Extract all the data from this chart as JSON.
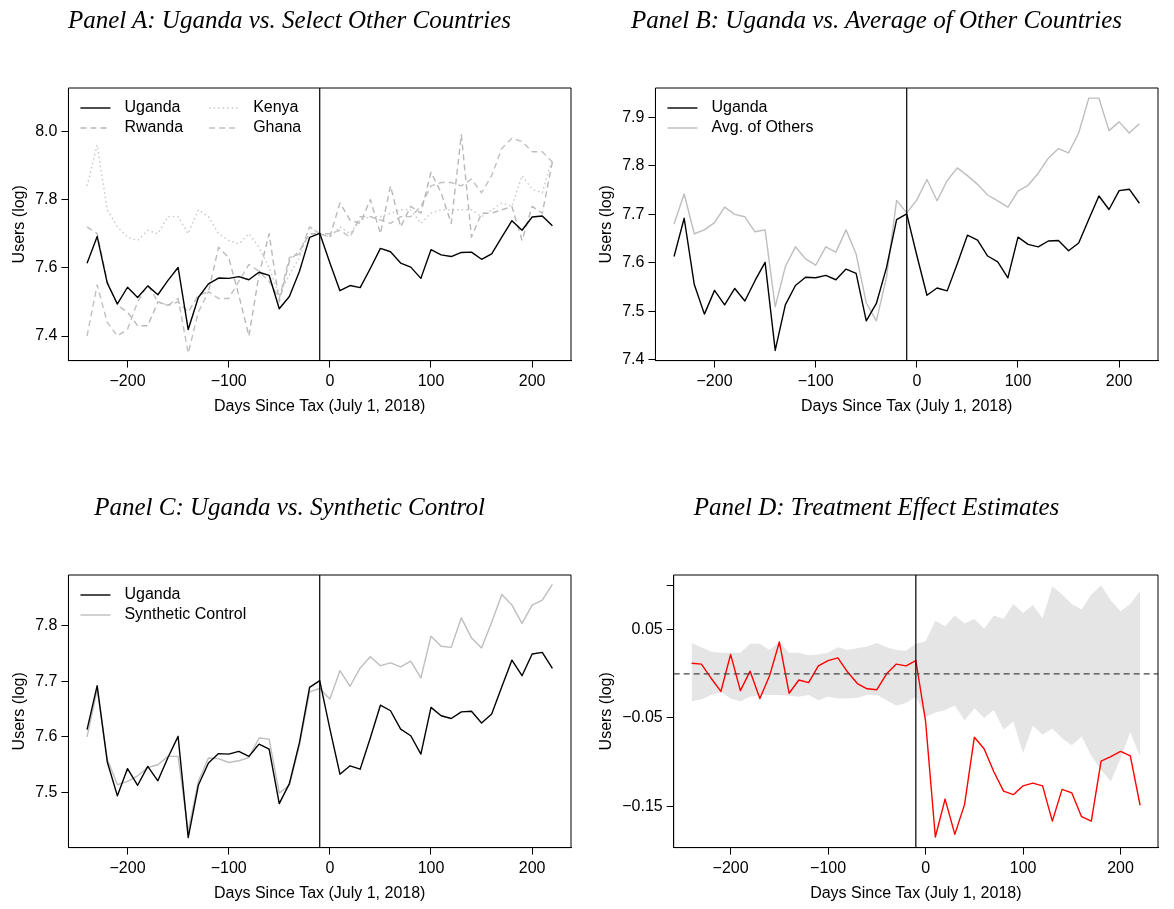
{
  "chart_data": [
    {
      "type": "line",
      "title": "Panel A: Uganda vs. Select Other Countries",
      "xlabel": "Days Since Tax (July 1, 2018)",
      "ylabel": "Users (log)",
      "legend": "top left",
      "x": [
        -240,
        -230,
        -220,
        -210,
        -200,
        -190,
        -180,
        -170,
        -160,
        -150,
        -140,
        -130,
        -120,
        -110,
        -100,
        -90,
        -80,
        -70,
        -60,
        -50,
        -40,
        -30,
        -20,
        -10,
        0,
        10,
        20,
        30,
        40,
        50,
        60,
        70,
        80,
        90,
        100,
        110,
        120,
        130,
        140,
        150,
        160,
        170,
        180,
        190,
        200,
        210,
        220
      ],
      "xlim": [
        -258.4,
        238.4
      ],
      "ylim": [
        7.328,
        8.127
      ],
      "yticks": [
        {
          "value": 7.4,
          "label": "7.4"
        },
        {
          "value": 7.6,
          "label": "7.6"
        },
        {
          "value": 7.8,
          "label": "7.8"
        },
        {
          "value": 8,
          "label": "8.0"
        }
      ],
      "ref_lines": [
        {
          "axis": "x",
          "value": -10,
          "color": "#000000"
        }
      ],
      "xticks": [
        -200,
        -100,
        0,
        100,
        200
      ],
      "series": [
        {
          "name": "Uganda",
          "color": "#000000",
          "line_style": "solid",
          "values": [
            7.613,
            7.692,
            7.555,
            7.494,
            7.543,
            7.513,
            7.547,
            7.521,
            7.563,
            7.601,
            7.419,
            7.513,
            7.553,
            7.57,
            7.569,
            7.574,
            7.565,
            7.587,
            7.578,
            7.48,
            7.516,
            7.59,
            7.689,
            7.701,
            7.615,
            7.533,
            7.548,
            7.542,
            7.598,
            7.657,
            7.647,
            7.614,
            7.602,
            7.569,
            7.653,
            7.638,
            7.633,
            7.645,
            7.646,
            7.625,
            7.641,
            7.69,
            7.738,
            7.71,
            7.749,
            7.752,
            7.723
          ]
        },
        {
          "name": "Rwanda",
          "color": "#b8b8b8",
          "line_style": "dashed",
          "values": [
            7.72,
            7.7,
            7.56,
            7.49,
            7.47,
            7.43,
            7.43,
            7.5,
            7.49,
            7.5,
            7.47,
            7.52,
            7.53,
            7.66,
            7.63,
            7.52,
            7.4,
            7.58,
            7.7,
            7.5,
            7.62,
            7.65,
            7.7,
            7.7,
            7.69,
            7.79,
            7.74,
            7.73,
            7.8,
            7.7,
            7.84,
            7.72,
            7.78,
            7.76,
            7.88,
            7.82,
            7.73,
            7.99,
            7.69,
            7.76,
            7.76,
            7.77,
            7.78,
            7.68,
            7.78,
            7.76,
            7.91
          ]
        },
        {
          "name": "Kenya",
          "color": "#c8c8c8",
          "line_style": "dotted",
          "values": [
            7.84,
            7.96,
            7.77,
            7.72,
            7.69,
            7.68,
            7.71,
            7.7,
            7.75,
            7.75,
            7.7,
            7.77,
            7.75,
            7.7,
            7.68,
            7.67,
            7.7,
            7.66,
            7.6,
            7.52,
            7.58,
            7.63,
            7.72,
            7.7,
            7.69,
            7.72,
            7.7,
            7.74,
            7.75,
            7.75,
            7.76,
            7.77,
            7.77,
            7.73,
            7.76,
            7.77,
            7.77,
            7.77,
            7.77,
            7.75,
            7.77,
            7.79,
            7.78,
            7.87,
            7.83,
            7.82,
            7.92
          ]
        },
        {
          "name": "Ghana",
          "color": "#c0c0c0",
          "line_style": "dashed",
          "values": [
            7.4,
            7.55,
            7.44,
            7.4,
            7.42,
            7.5,
            7.55,
            7.5,
            7.49,
            7.51,
            7.35,
            7.47,
            7.53,
            7.51,
            7.51,
            7.56,
            7.61,
            7.59,
            7.56,
            7.51,
            7.63,
            7.64,
            7.72,
            7.7,
            7.7,
            7.71,
            7.69,
            7.75,
            7.75,
            7.74,
            7.73,
            7.75,
            7.75,
            7.78,
            7.84,
            7.85,
            7.85,
            7.84,
            7.86,
            7.82,
            7.87,
            7.95,
            7.98,
            7.97,
            7.94,
            7.94,
            7.91
          ]
        }
      ]
    },
    {
      "type": "line",
      "title": "Panel B: Uganda vs. Average of Other Countries",
      "xlabel": "Days Since Tax (July 1, 2018)",
      "ylabel": "Users (log)",
      "legend": "top left",
      "x": [
        -240,
        -230,
        -220,
        -210,
        -200,
        -190,
        -180,
        -170,
        -160,
        -150,
        -140,
        -130,
        -120,
        -110,
        -100,
        -90,
        -80,
        -70,
        -60,
        -50,
        -40,
        -30,
        -20,
        -10,
        0,
        10,
        20,
        30,
        40,
        50,
        60,
        70,
        80,
        90,
        100,
        110,
        120,
        130,
        140,
        150,
        160,
        170,
        180,
        190,
        200,
        210,
        220
      ],
      "xlim": [
        -258.4,
        238.4
      ],
      "xticks": [
        -200,
        -100,
        0,
        100,
        200
      ],
      "ylim": [
        7.398,
        7.961
      ],
      "yticks": [
        7.4,
        7.5,
        7.6,
        7.7,
        7.8,
        7.9
      ],
      "ref_lines": [
        {
          "axis": "x",
          "value": -10,
          "color": "#000000"
        }
      ],
      "series": [
        {
          "name": "Uganda",
          "color": "#000000",
          "values": [
            7.613,
            7.692,
            7.555,
            7.494,
            7.543,
            7.513,
            7.547,
            7.521,
            7.563,
            7.601,
            7.419,
            7.513,
            7.553,
            7.57,
            7.569,
            7.574,
            7.565,
            7.587,
            7.578,
            7.48,
            7.516,
            7.59,
            7.689,
            7.701,
            7.615,
            7.533,
            7.548,
            7.542,
            7.598,
            7.657,
            7.647,
            7.614,
            7.602,
            7.569,
            7.653,
            7.638,
            7.633,
            7.645,
            7.646,
            7.625,
            7.641,
            7.69,
            7.738,
            7.71,
            7.749,
            7.752,
            7.723
          ]
        },
        {
          "name": "Avg. of Others",
          "color": "#bebebe",
          "values": [
            7.68,
            7.742,
            7.66,
            7.668,
            7.683,
            7.715,
            7.7,
            7.695,
            7.664,
            7.668,
            7.509,
            7.592,
            7.633,
            7.608,
            7.595,
            7.633,
            7.622,
            7.668,
            7.618,
            7.517,
            7.48,
            7.57,
            7.729,
            7.703,
            7.73,
            7.772,
            7.728,
            7.77,
            7.796,
            7.78,
            7.762,
            7.74,
            7.728,
            7.715,
            7.748,
            7.76,
            7.785,
            7.816,
            7.836,
            7.827,
            7.868,
            7.94,
            7.94,
            7.873,
            7.891,
            7.868,
            7.887
          ]
        }
      ]
    },
    {
      "type": "line",
      "title": "Panel C: Uganda vs. Synthetic Control",
      "xlabel": "Days Since Tax (July 1, 2018)",
      "ylabel": "Users (log)",
      "legend": "top left",
      "x": [
        -240,
        -230,
        -220,
        -210,
        -200,
        -190,
        -180,
        -170,
        -160,
        -150,
        -140,
        -130,
        -120,
        -110,
        -100,
        -90,
        -80,
        -70,
        -60,
        -50,
        -40,
        -30,
        -20,
        -10,
        0,
        10,
        20,
        30,
        40,
        50,
        60,
        70,
        80,
        90,
        100,
        110,
        120,
        130,
        140,
        150,
        160,
        170,
        180,
        190,
        200,
        210,
        220
      ],
      "xlim": [
        -258.4,
        238.4
      ],
      "xticks": [
        -200,
        -100,
        0,
        100,
        200
      ],
      "ylim": [
        7.401,
        7.891
      ],
      "yticks": [
        7.5,
        7.6,
        7.7,
        7.8
      ],
      "ref_lines": [
        {
          "axis": "x",
          "value": -10,
          "color": "#000000"
        }
      ],
      "series": [
        {
          "name": "Uganda",
          "color": "#000000",
          "values": [
            7.613,
            7.692,
            7.555,
            7.494,
            7.543,
            7.513,
            7.547,
            7.521,
            7.563,
            7.601,
            7.419,
            7.513,
            7.553,
            7.57,
            7.569,
            7.574,
            7.565,
            7.587,
            7.578,
            7.48,
            7.516,
            7.59,
            7.689,
            7.701,
            7.615,
            7.533,
            7.548,
            7.542,
            7.598,
            7.657,
            7.647,
            7.614,
            7.602,
            7.569,
            7.653,
            7.638,
            7.633,
            7.645,
            7.646,
            7.625,
            7.641,
            7.69,
            7.738,
            7.71,
            7.749,
            7.752,
            7.723
          ]
        },
        {
          "name": "Synthetic Control",
          "color": "#bebebe",
          "values": [
            7.6,
            7.685,
            7.56,
            7.514,
            7.52,
            7.53,
            7.545,
            7.55,
            7.565,
            7.565,
            7.43,
            7.52,
            7.562,
            7.561,
            7.554,
            7.557,
            7.563,
            7.598,
            7.596,
            7.499,
            7.513,
            7.585,
            7.681,
            7.687,
            7.668,
            7.719,
            7.691,
            7.724,
            7.744,
            7.728,
            7.733,
            7.726,
            7.736,
            7.706,
            7.781,
            7.763,
            7.761,
            7.814,
            7.778,
            7.76,
            7.806,
            7.856,
            7.837,
            7.804,
            7.837,
            7.846,
            7.874
          ]
        }
      ]
    },
    {
      "type": "line",
      "title": "Panel D: Treatment Effect Estimates",
      "xlabel": "Days Since Tax (July 1, 2018)",
      "ylabel": "Users (log)",
      "x": [
        -240,
        -230,
        -220,
        -210,
        -200,
        -190,
        -180,
        -170,
        -160,
        -150,
        -140,
        -130,
        -120,
        -110,
        -100,
        -90,
        -80,
        -70,
        -60,
        -50,
        -40,
        -30,
        -20,
        -10,
        0,
        10,
        20,
        30,
        40,
        50,
        60,
        70,
        80,
        90,
        100,
        110,
        120,
        130,
        140,
        150,
        160,
        170,
        180,
        190,
        200,
        210,
        220
      ],
      "xlim": [
        -258.4,
        238.4
      ],
      "xticks": [
        -200,
        -100,
        0,
        100,
        200
      ],
      "ylim": [
        -0.197,
        0.112
      ],
      "yticks": [
        {
          "value": 0.1,
          "label": null
        },
        0.05,
        {
          "value": -0.05,
          "label": "−0.05"
        },
        {
          "value": -0.15,
          "label": "−0.15"
        }
      ],
      "ref_lines": [
        {
          "axis": "x",
          "value": -10,
          "color": "#000000"
        },
        {
          "axis": "y",
          "value": 0,
          "color": "#444444",
          "line_style": "dashed"
        }
      ],
      "series": [
        {
          "color": "#ff0000",
          "values": [
            0.012,
            0.011,
            -0.005,
            -0.02,
            0.022,
            -0.019,
            0.003,
            -0.028,
            -0.002,
            0.036,
            -0.022,
            -0.007,
            -0.01,
            0.009,
            0.015,
            0.018,
            0.002,
            -0.011,
            -0.017,
            -0.018,
            0.0,
            0.011,
            0.009,
            0.015,
            -0.054,
            -0.185,
            -0.142,
            -0.182,
            -0.148,
            -0.072,
            -0.085,
            -0.111,
            -0.133,
            -0.137,
            -0.127,
            -0.124,
            -0.127,
            -0.167,
            -0.131,
            -0.135,
            -0.162,
            -0.167,
            -0.099,
            -0.094,
            -0.088,
            -0.093,
            -0.149
          ],
          "lower": [
            -0.031,
            -0.029,
            -0.024,
            -0.021,
            -0.028,
            -0.031,
            -0.026,
            -0.024,
            -0.024,
            -0.024,
            -0.025,
            -0.026,
            -0.024,
            -0.03,
            -0.026,
            -0.028,
            -0.028,
            -0.027,
            -0.024,
            -0.024,
            -0.03,
            -0.036,
            -0.033,
            -0.026,
            -0.049,
            -0.044,
            -0.041,
            -0.036,
            -0.053,
            -0.039,
            -0.05,
            -0.041,
            -0.063,
            -0.054,
            -0.09,
            -0.059,
            -0.069,
            -0.062,
            -0.073,
            -0.081,
            -0.071,
            -0.093,
            -0.109,
            -0.122,
            -0.096,
            -0.066,
            -0.094
          ],
          "upper": [
            0.035,
            0.03,
            0.025,
            0.024,
            0.024,
            0.024,
            0.034,
            0.034,
            0.027,
            0.036,
            0.024,
            0.024,
            0.021,
            0.022,
            0.024,
            0.03,
            0.027,
            0.029,
            0.031,
            0.035,
            0.03,
            0.027,
            0.026,
            0.034,
            0.037,
            0.06,
            0.054,
            0.066,
            0.057,
            0.062,
            0.051,
            0.066,
            0.062,
            0.079,
            0.069,
            0.078,
            0.063,
            0.099,
            0.09,
            0.079,
            0.073,
            0.09,
            0.1,
            0.083,
            0.071,
            0.079,
            0.094
          ]
        }
      ]
    }
  ]
}
